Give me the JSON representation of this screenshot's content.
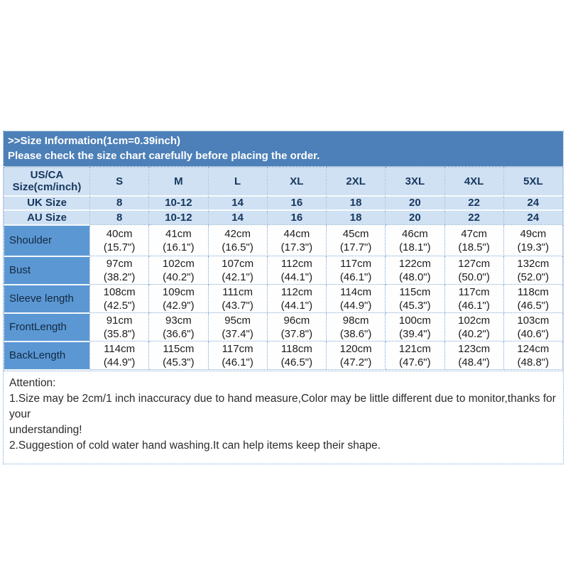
{
  "theme": {
    "banner_bg": "#4d80b8",
    "banner_text": "#ffffff",
    "header_row_bg": "#cfe1f3",
    "header_text": "#17375d",
    "label_col_bg": "#5b97d3",
    "data_cell_bg": "#fefefe",
    "dotted_border": "#7fa6ce"
  },
  "banner": {
    "line1": ">>Size Information(1cm=0.39inch)",
    "line2": "Please check the size chart carefully before placing the order."
  },
  "table": {
    "corner": {
      "line1": "US/CA",
      "line2": "Size(cm/inch)"
    },
    "size_headers": [
      "S",
      "M",
      "L",
      "XL",
      "2XL",
      "3XL",
      "4XL",
      "5XL"
    ],
    "uk": {
      "label": "UK Size",
      "values": [
        "8",
        "10-12",
        "14",
        "16",
        "18",
        "20",
        "22",
        "24"
      ]
    },
    "au": {
      "label": "AU Size",
      "values": [
        "8",
        "10-12",
        "14",
        "16",
        "18",
        "20",
        "22",
        "24"
      ]
    },
    "rows": [
      {
        "label": "Shoulder",
        "cm": [
          "40cm",
          "41cm",
          "42cm",
          "44cm",
          "45cm",
          "46cm",
          "47cm",
          "49cm"
        ],
        "inch": [
          "(15.7\")",
          "(16.1\")",
          "(16.5\")",
          "(17.3\")",
          "(17.7\")",
          "(18.1\")",
          "(18.5\")",
          "(19.3\")"
        ]
      },
      {
        "label": "Bust",
        "cm": [
          "97cm",
          "102cm",
          "107cm",
          "112cm",
          "117cm",
          "122cm",
          "127cm",
          "132cm"
        ],
        "inch": [
          "(38.2\")",
          "(40.2\")",
          "(42.1\")",
          "(44.1\")",
          "(46.1\")",
          "(48.0\")",
          "(50.0\")",
          "(52.0\")"
        ]
      },
      {
        "label": "Sleeve length",
        "cm": [
          "108cm",
          "109cm",
          "111cm",
          "112cm",
          "114cm",
          "115cm",
          "117cm",
          "118cm"
        ],
        "inch": [
          "(42.5\")",
          "(42.9\")",
          "(43.7\")",
          "(44.1\")",
          "(44.9\")",
          "(45.3\")",
          "(46.1\")",
          "(46.5\")"
        ]
      },
      {
        "label": "FrontLength",
        "cm": [
          "91cm",
          "93cm",
          "95cm",
          "96cm",
          "98cm",
          "100cm",
          "102cm",
          "103cm"
        ],
        "inch": [
          "(35.8\")",
          "(36.6\")",
          "(37.4\")",
          "(37.8\")",
          "(38.6\")",
          "(39.4\")",
          "(40.2\")",
          "(40.6\")"
        ]
      },
      {
        "label": "BackLength",
        "cm": [
          "114cm",
          "115cm",
          "117cm",
          "118cm",
          "120cm",
          "121cm",
          "123cm",
          "124cm"
        ],
        "inch": [
          "(44.9\")",
          "(45.3\")",
          "(46.1\")",
          "(46.5\")",
          "(47.2\")",
          "(47.6\")",
          "(48.4\")",
          "(48.8\")"
        ]
      }
    ]
  },
  "attention": {
    "title": "Attention:",
    "line1": "1.Size may be 2cm/1 inch inaccuracy due to hand measure,Color may be little different due to monitor,thanks for your",
    "line2": "understanding!",
    "line3": "2.Suggestion of cold water hand washing.It can help items keep their shape."
  }
}
